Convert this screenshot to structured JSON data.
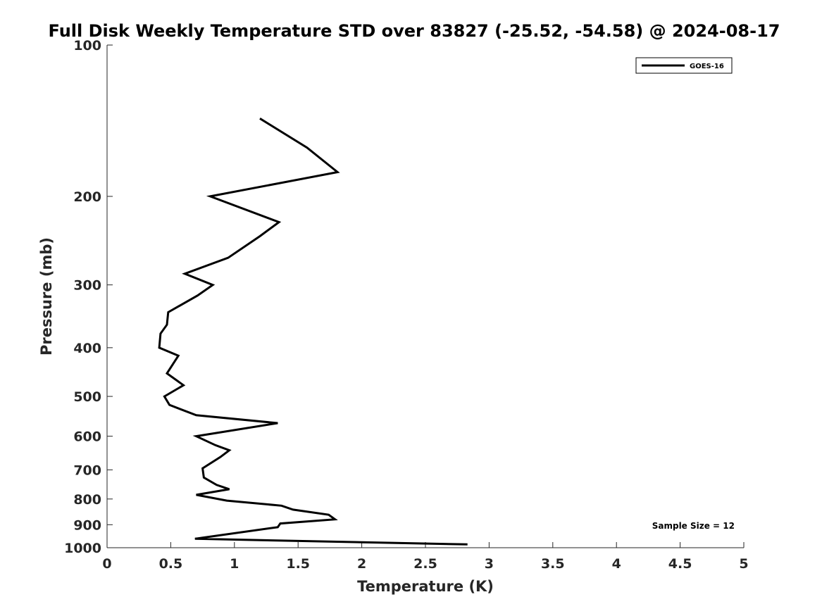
{
  "chart_data": {
    "type": "line",
    "title": "Full Disk Weekly Temperature STD over 83827 (-25.52, -54.58) @ 2024-08-17",
    "xlabel": "Temperature (K)",
    "ylabel": "Pressure (mb)",
    "xlim": [
      0,
      5
    ],
    "ylim": [
      100,
      1000
    ],
    "y_scale": "log",
    "y_reversed": true,
    "x_ticks": [
      0,
      0.5,
      1,
      1.5,
      2,
      2.5,
      3,
      3.5,
      4,
      4.5,
      5
    ],
    "x_tick_labels": [
      "0",
      "0.5",
      "1",
      "1.5",
      "2",
      "2.5",
      "3",
      "3.5",
      "4",
      "4.5",
      "5"
    ],
    "y_ticks": [
      100,
      200,
      300,
      400,
      500,
      600,
      700,
      800,
      900,
      1000
    ],
    "y_tick_labels": [
      "100",
      "200",
      "300",
      "400",
      "500",
      "600",
      "700",
      "800",
      "900",
      "1000"
    ],
    "grid": false,
    "legend_position": "top-right",
    "annotation": "Sample Size = 12",
    "series": [
      {
        "name": "GOES-16",
        "color": "#000000",
        "points": [
          {
            "x": 1.2,
            "y": 140
          },
          {
            "x": 1.57,
            "y": 160
          },
          {
            "x": 1.81,
            "y": 179
          },
          {
            "x": 0.81,
            "y": 200
          },
          {
            "x": 1.35,
            "y": 225
          },
          {
            "x": 1.2,
            "y": 240
          },
          {
            "x": 0.95,
            "y": 265
          },
          {
            "x": 0.61,
            "y": 285
          },
          {
            "x": 0.83,
            "y": 300
          },
          {
            "x": 0.71,
            "y": 315
          },
          {
            "x": 0.48,
            "y": 340
          },
          {
            "x": 0.47,
            "y": 360
          },
          {
            "x": 0.42,
            "y": 375
          },
          {
            "x": 0.41,
            "y": 400
          },
          {
            "x": 0.56,
            "y": 415
          },
          {
            "x": 0.47,
            "y": 450
          },
          {
            "x": 0.6,
            "y": 475
          },
          {
            "x": 0.45,
            "y": 500
          },
          {
            "x": 0.49,
            "y": 520
          },
          {
            "x": 0.7,
            "y": 545
          },
          {
            "x": 1.34,
            "y": 565
          },
          {
            "x": 0.7,
            "y": 600
          },
          {
            "x": 0.85,
            "y": 625
          },
          {
            "x": 0.96,
            "y": 640
          },
          {
            "x": 0.89,
            "y": 660
          },
          {
            "x": 0.75,
            "y": 695
          },
          {
            "x": 0.76,
            "y": 725
          },
          {
            "x": 0.86,
            "y": 750
          },
          {
            "x": 0.96,
            "y": 765
          },
          {
            "x": 0.7,
            "y": 785
          },
          {
            "x": 0.94,
            "y": 806
          },
          {
            "x": 1.37,
            "y": 825
          },
          {
            "x": 1.46,
            "y": 840
          },
          {
            "x": 1.74,
            "y": 860
          },
          {
            "x": 1.79,
            "y": 878
          },
          {
            "x": 1.36,
            "y": 895
          },
          {
            "x": 1.34,
            "y": 910
          },
          {
            "x": 0.69,
            "y": 960
          },
          {
            "x": 2.83,
            "y": 985
          }
        ]
      }
    ]
  }
}
